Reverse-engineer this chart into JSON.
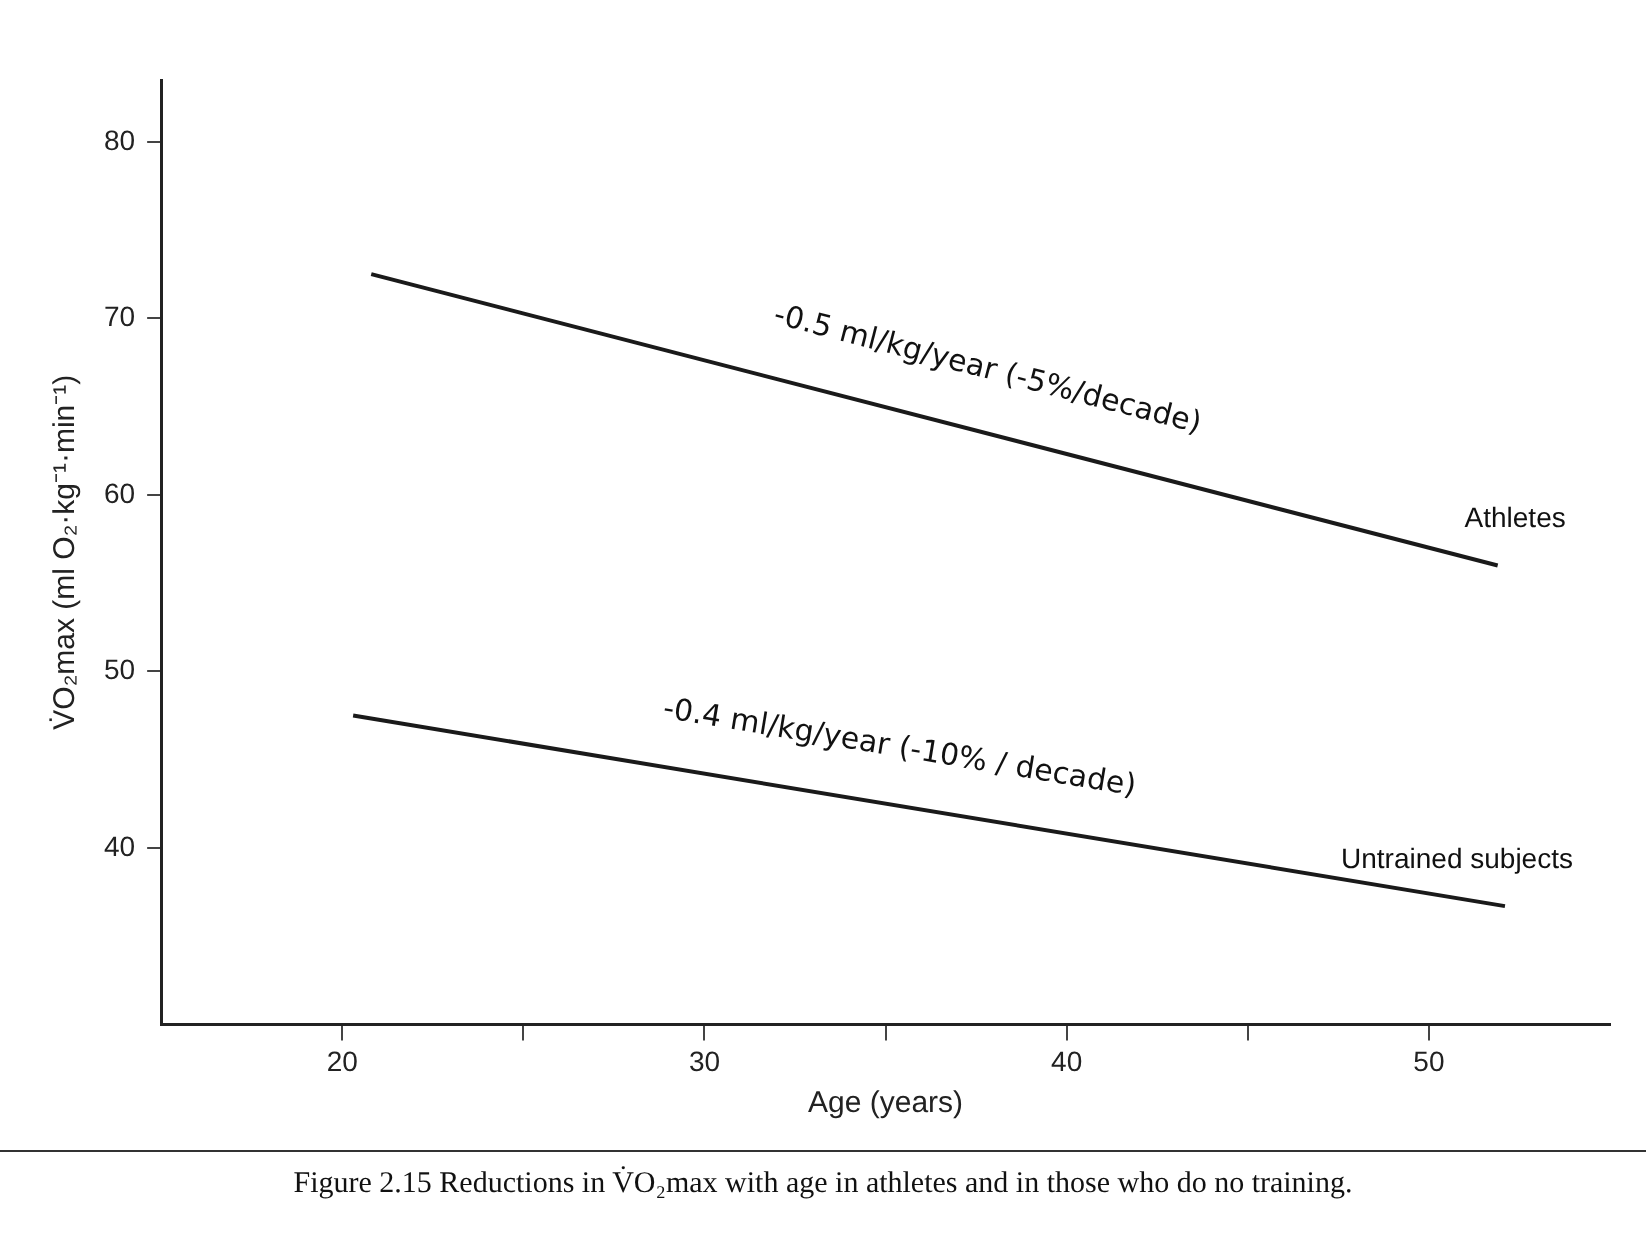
{
  "chart_data": {
    "type": "line",
    "xlabel": "Age (years)",
    "ylabel": "V̇O₂max (ml O₂·kg⁻¹·min⁻¹)",
    "xlim": [
      15,
      55
    ],
    "xticks": [
      20,
      {
        "value": 25,
        "label": null
      },
      30,
      {
        "value": 35,
        "label": null
      },
      40,
      {
        "value": 45,
        "label": null
      },
      50
    ],
    "ylim": [
      30,
      83.5
    ],
    "yticks": [
      40,
      50,
      60,
      70,
      80
    ],
    "series": [
      {
        "name": "Athletes",
        "color": "#1a1a1a",
        "x": [
          20.8,
          51.9
        ],
        "values": [
          72.5,
          56
        ]
      },
      {
        "name": "Untrained subjects",
        "color": "#1a1a1a",
        "x": [
          20.3,
          52.1
        ],
        "values": [
          47.5,
          36.7
        ]
      }
    ],
    "marker": "none",
    "line_style": "solid",
    "grid": false,
    "legend": false,
    "annotations": [
      "-0.5 ml/kg/year (-5%/decade)",
      "-0.4 ml/kg/year (-10% / decade)",
      "Figure 2.15 Reductions in V̇O₂max with age in athletes and in those who do no training."
    ]
  }
}
